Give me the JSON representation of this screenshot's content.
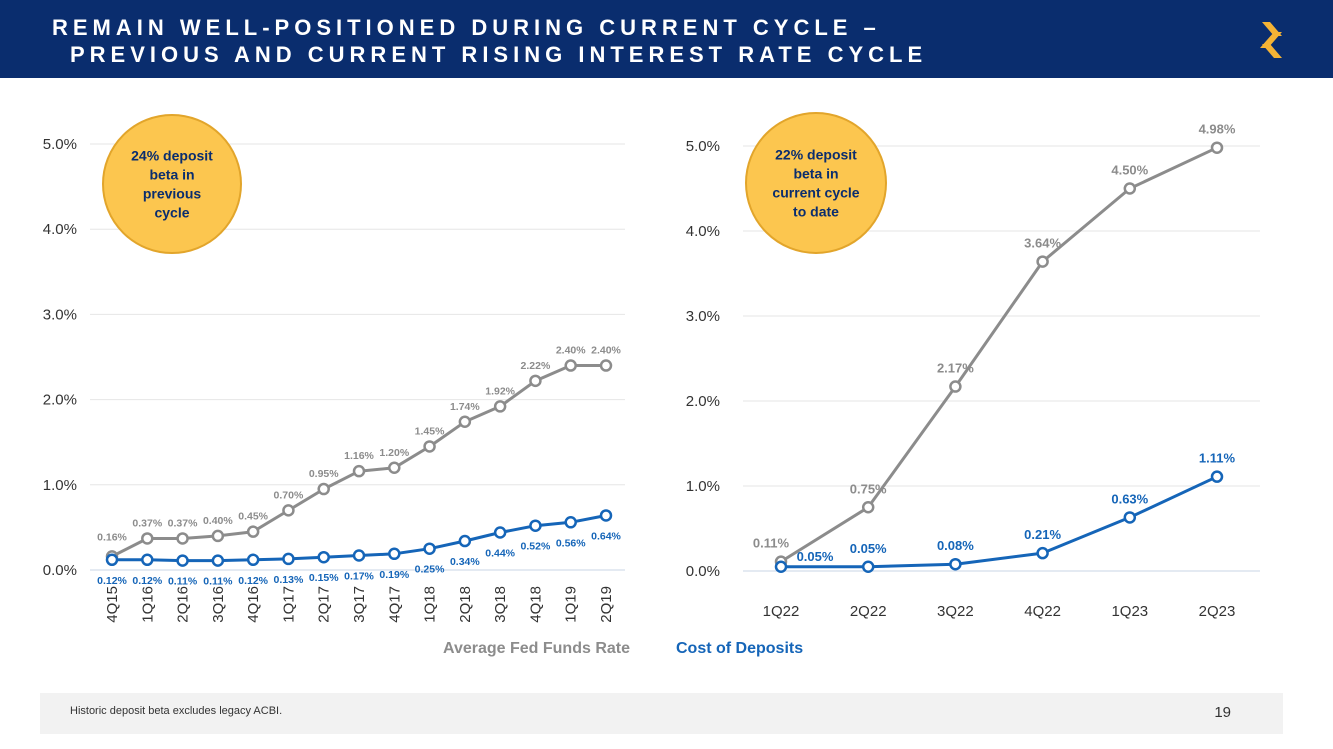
{
  "header": {
    "title_line1": "REMAIN WELL-POSITIONED DURING CURRENT CYCLE –",
    "title_line2": "PREVIOUS AND CURRENT RISING INTEREST RATE CYCLE",
    "logo_icon": "company-s-logo-icon"
  },
  "colors": {
    "header_bg": "#0a2d6e",
    "fed_line": "#8c8c8c",
    "deposit_line": "#1565b8",
    "callout_fill": "#fcc64f",
    "callout_stroke": "#e2a52b",
    "logo": "#f5b335"
  },
  "legend": {
    "fed_label": "Average Fed Funds Rate",
    "deposit_label": "Cost of Deposits"
  },
  "chart_data": [
    {
      "type": "line",
      "ytick_labels": [
        "0.0%",
        "1.0%",
        "2.0%",
        "3.0%",
        "4.0%",
        "5.0%"
      ],
      "ylim": [
        0,
        5
      ],
      "categories": [
        "4Q15",
        "1Q16",
        "2Q16",
        "3Q16",
        "4Q16",
        "1Q17",
        "2Q17",
        "3Q17",
        "4Q17",
        "1Q18",
        "2Q18",
        "3Q18",
        "4Q18",
        "1Q19",
        "2Q19"
      ],
      "series": [
        {
          "name": "Average Fed Funds Rate",
          "values": [
            0.16,
            0.37,
            0.37,
            0.4,
            0.45,
            0.7,
            0.95,
            1.16,
            1.2,
            1.45,
            1.74,
            1.92,
            2.22,
            2.4,
            2.4
          ],
          "labels": [
            "0.16%",
            "0.37%",
            "0.37%",
            "0.40%",
            "0.45%",
            "0.70%",
            "0.95%",
            "1.16%",
            "1.20%",
            "1.45%",
            "1.74%",
            "1.92%",
            "2.22%",
            "2.40%",
            "2.40%"
          ]
        },
        {
          "name": "Cost of Deposits",
          "values": [
            0.12,
            0.12,
            0.11,
            0.11,
            0.12,
            0.13,
            0.15,
            0.17,
            0.19,
            0.25,
            0.34,
            0.44,
            0.52,
            0.56,
            0.64
          ],
          "labels": [
            "0.12%",
            "0.12%",
            "0.11%",
            "0.11%",
            "0.12%",
            "0.13%",
            "0.15%",
            "0.17%",
            "0.19%",
            "0.25%",
            "0.34%",
            "0.44%",
            "0.52%",
            "0.56%",
            "0.64%"
          ]
        }
      ],
      "callout": [
        "24% deposit",
        "beta in",
        "previous",
        "cycle"
      ]
    },
    {
      "type": "line",
      "ytick_labels": [
        "0.0%",
        "1.0%",
        "2.0%",
        "3.0%",
        "4.0%",
        "5.0%"
      ],
      "ylim": [
        0,
        5
      ],
      "categories": [
        "1Q22",
        "2Q22",
        "3Q22",
        "4Q22",
        "1Q23",
        "2Q23"
      ],
      "series": [
        {
          "name": "Average Fed Funds Rate",
          "values": [
            0.11,
            0.75,
            2.17,
            3.64,
            4.5,
            4.98
          ],
          "labels": [
            "0.11%",
            "0.75%",
            "2.17%",
            "3.64%",
            "4.50%",
            "4.98%"
          ]
        },
        {
          "name": "Cost of Deposits",
          "values": [
            0.05,
            0.05,
            0.08,
            0.21,
            0.63,
            1.11
          ],
          "labels": [
            "0.05%",
            "0.05%",
            "0.08%",
            "0.21%",
            "0.63%",
            "1.11%"
          ]
        }
      ],
      "callout": [
        "22% deposit",
        "beta in",
        "current cycle",
        "to date"
      ]
    }
  ],
  "footer": {
    "note": "Historic deposit beta excludes legacy ACBI.",
    "page_number": "19"
  }
}
